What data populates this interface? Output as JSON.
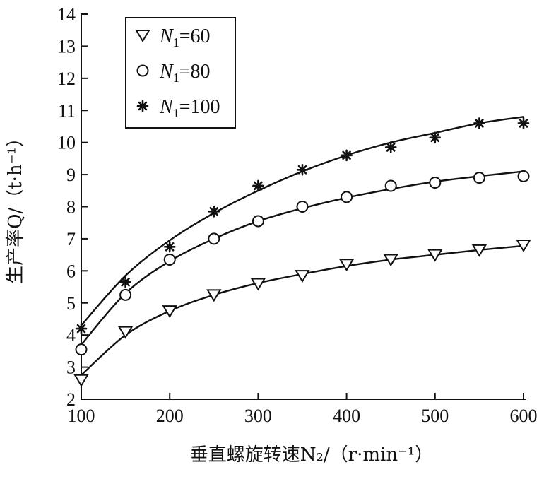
{
  "chart_data": {
    "type": "scatter",
    "title": "",
    "xlabel": "垂直螺旋转速N₂/（r·min⁻¹）",
    "ylabel": "生产率Q/（t·h⁻¹）",
    "xlim": [
      100,
      600
    ],
    "ylim": [
      2,
      14
    ],
    "xticks": [
      100,
      200,
      300,
      400,
      500,
      600
    ],
    "yticks": [
      2,
      3,
      4,
      5,
      6,
      7,
      8,
      9,
      10,
      11,
      12,
      13,
      14
    ],
    "grid": false,
    "legend_position": "top-left",
    "x": [
      100,
      150,
      200,
      250,
      300,
      350,
      400,
      450,
      500,
      550,
      600
    ],
    "series": [
      {
        "name": "N1=60",
        "legend_var": "N",
        "legend_sub": "1",
        "legend_value": "=60",
        "marker": "triangle-down-open",
        "values": [
          2.6,
          4.1,
          4.75,
          5.25,
          5.6,
          5.85,
          6.2,
          6.35,
          6.5,
          6.65,
          6.8
        ],
        "fit": [
          2.75,
          4.0,
          4.75,
          5.25,
          5.62,
          5.9,
          6.15,
          6.35,
          6.5,
          6.65,
          6.78
        ]
      },
      {
        "name": "N1=80",
        "legend_var": "N",
        "legend_sub": "1",
        "legend_value": "=80",
        "marker": "circle-open",
        "values": [
          3.55,
          5.25,
          6.35,
          7.0,
          7.55,
          8.0,
          8.3,
          8.65,
          8.75,
          8.9,
          8.95
        ],
        "fit": [
          3.7,
          5.3,
          6.3,
          7.0,
          7.55,
          7.95,
          8.28,
          8.55,
          8.78,
          8.95,
          9.1
        ]
      },
      {
        "name": "N1=100",
        "legend_var": "N",
        "legend_sub": "1",
        "legend_value": "=100",
        "marker": "asterisk",
        "values": [
          4.2,
          5.65,
          6.75,
          7.85,
          8.65,
          9.15,
          9.6,
          9.85,
          10.15,
          10.6,
          10.6
        ],
        "fit": [
          4.3,
          5.85,
          6.95,
          7.8,
          8.5,
          9.1,
          9.6,
          10.0,
          10.3,
          10.6,
          10.8
        ]
      }
    ]
  }
}
